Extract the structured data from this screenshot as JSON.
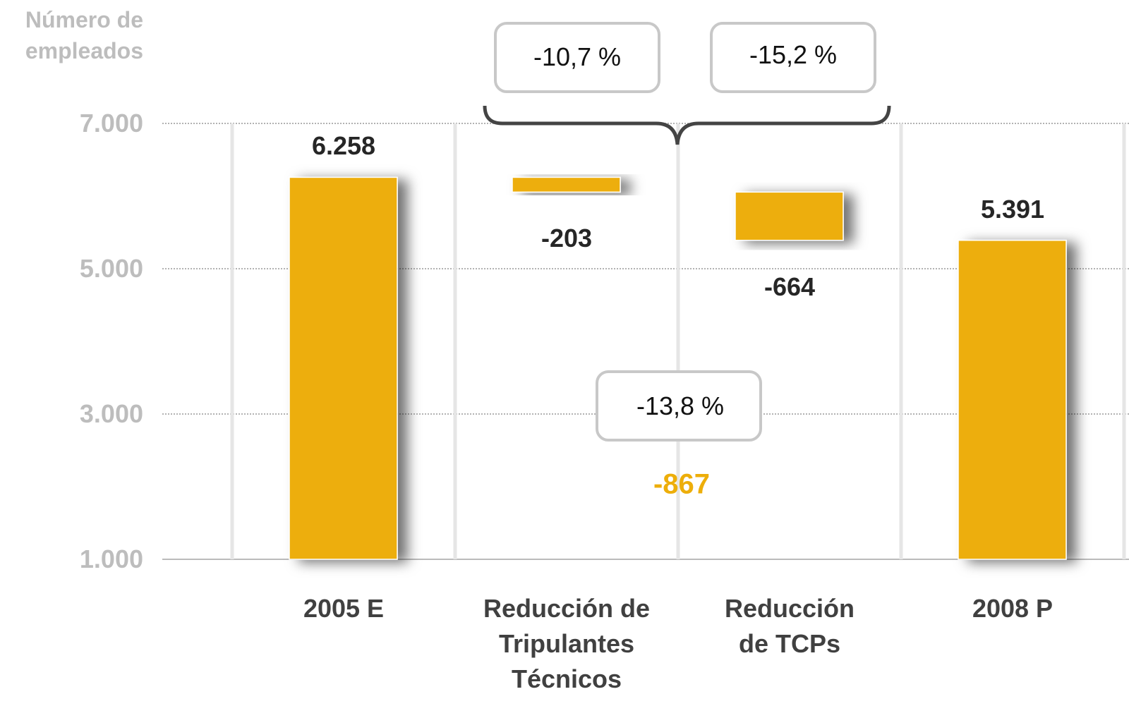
{
  "chart_data": {
    "type": "waterfall",
    "y_axis_label": "Número de\nempleados",
    "categories": [
      "2005 E",
      "Reducción de\nTripulantes\nTécnicos",
      "Reducción\nde TCPs",
      "2008 P"
    ],
    "values": [
      6258,
      -203,
      -664,
      5391
    ],
    "value_labels": [
      "6.258",
      "-203",
      "-664",
      "5.391"
    ],
    "color": "#edae0a",
    "ylim": [
      1000,
      7200
    ],
    "yticks": [
      {
        "value": 1000,
        "label": "1.000"
      },
      {
        "value": 3000,
        "label": "3.000"
      },
      {
        "value": 5000,
        "label": "5.000"
      },
      {
        "value": 7000,
        "label": "7.000"
      }
    ],
    "grid": true,
    "annotations": [
      "-10,7 %",
      "-15,2 %",
      "-13,8 %",
      "-867"
    ]
  }
}
